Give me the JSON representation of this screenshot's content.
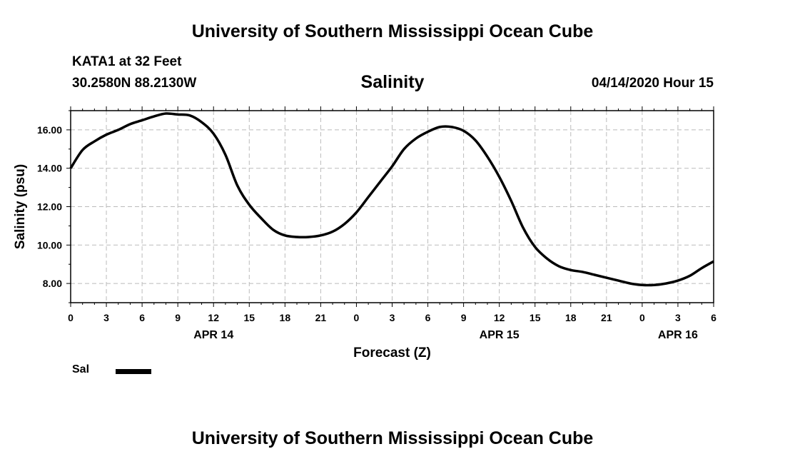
{
  "header": {
    "top_title": "University of Southern Mississippi Ocean Cube",
    "bottom_title": "University of Southern Mississippi Ocean Cube",
    "station": "KATA1 at 32 Feet",
    "coordinates": "30.2580N 88.2130W",
    "date_hour": "04/14/2020 Hour 15"
  },
  "chart_data": {
    "type": "line",
    "title": "Salinity",
    "xlabel": "Forecast (Z)",
    "ylabel": "Salinity (psu)",
    "ylim": [
      7.0,
      17.0
    ],
    "xlim": [
      0,
      54
    ],
    "yticks": [
      8.0,
      10.0,
      12.0,
      14.0,
      16.0
    ],
    "ytick_labels": [
      "8.00",
      "10.00",
      "12.00",
      "14.00",
      "16.00"
    ],
    "xticks": [
      0,
      3,
      6,
      9,
      12,
      15,
      18,
      21,
      24,
      27,
      30,
      33,
      36,
      39,
      42,
      45,
      48,
      51,
      54
    ],
    "xtick_labels": [
      "0",
      "3",
      "6",
      "9",
      "12",
      "15",
      "18",
      "21",
      "0",
      "3",
      "6",
      "9",
      "12",
      "15",
      "18",
      "21",
      "0",
      "3",
      "6"
    ],
    "day_labels": [
      {
        "x": 12,
        "label": "APR 14"
      },
      {
        "x": 36,
        "label": "APR 15"
      },
      {
        "x": 51,
        "label": "APR 16"
      }
    ],
    "grid": true,
    "legend": [
      {
        "name": "Sal",
        "color": "#000000"
      }
    ],
    "series": [
      {
        "name": "Sal",
        "color": "#000000",
        "x": [
          0,
          1,
          2,
          3,
          4,
          5,
          6,
          7,
          8,
          9,
          10,
          11,
          12,
          13,
          14,
          15,
          16,
          17,
          18,
          19,
          20,
          21,
          22,
          23,
          24,
          25,
          26,
          27,
          28,
          29,
          30,
          31,
          32,
          33,
          34,
          35,
          36,
          37,
          38,
          39,
          40,
          41,
          42,
          43,
          44,
          45,
          46,
          47,
          48,
          49,
          50,
          51,
          52,
          53,
          54
        ],
        "values": [
          14.0,
          14.95,
          15.4,
          15.75,
          16.0,
          16.3,
          16.5,
          16.7,
          16.85,
          16.8,
          16.75,
          16.4,
          15.8,
          14.7,
          13.1,
          12.1,
          11.4,
          10.8,
          10.5,
          10.42,
          10.42,
          10.5,
          10.7,
          11.1,
          11.7,
          12.5,
          13.3,
          14.1,
          15.0,
          15.55,
          15.9,
          16.15,
          16.15,
          15.95,
          15.45,
          14.6,
          13.55,
          12.3,
          10.9,
          9.9,
          9.3,
          8.9,
          8.7,
          8.6,
          8.45,
          8.3,
          8.15,
          8.0,
          7.92,
          7.92,
          8.0,
          8.15,
          8.4,
          8.8,
          9.15
        ]
      }
    ]
  }
}
